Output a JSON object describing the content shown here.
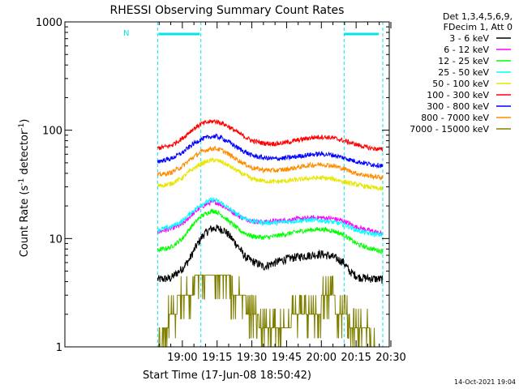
{
  "chart_data": {
    "type": "line",
    "title": "RHESSI Observing Summary Count Rates",
    "xlabel": "Start Time (17-Jun-08 18:50:42)",
    "ylabel_prefix": "Count Rate (s",
    "ylabel_sup1": "-1",
    "ylabel_mid": " detector",
    "ylabel_sup2": "-1",
    "ylabel_suffix": ")",
    "yscale": "log",
    "xlim_minutes": [
      -50.7,
      89.3
    ],
    "ylim": [
      1,
      1000
    ],
    "x_ticks": [
      "19:00",
      "19:15",
      "19:30",
      "19:45",
      "20:00",
      "20:15",
      "20:30"
    ],
    "x_tick_minutes": [
      0,
      15,
      30,
      45,
      60,
      75,
      90
    ],
    "y_ticks": [
      "1",
      "10",
      "100",
      "1000"
    ],
    "y_tick_values": [
      1,
      10,
      100,
      1000
    ],
    "detector_info": [
      "Det 1,3,4,5,6,9,",
      "FDecim 1, Att 0"
    ],
    "flag_label": "N",
    "timestamp": "14-Oct-2021 19:04",
    "night_intervals_minutes": [
      [
        -10.7,
        8.0
      ],
      [
        69.8,
        86.5
      ]
    ],
    "flag_bars_minutes": [
      [
        -10.3,
        7.5
      ],
      [
        69.8,
        84.8
      ]
    ],
    "series": [
      {
        "name": "3 - 6 keV",
        "color": "#000000",
        "x": [
          -10.7,
          -5,
          0,
          3,
          6,
          9,
          12,
          14,
          18,
          21,
          24,
          27,
          30,
          33,
          35,
          40,
          45,
          50,
          55,
          60,
          65,
          69.8,
          72,
          76,
          80,
          86.5
        ],
        "y": [
          4.2,
          4.3,
          5.3,
          6.4,
          8.5,
          10.8,
          12.2,
          12.5,
          12.0,
          10.2,
          8.5,
          6.8,
          6.2,
          5.8,
          5.5,
          6.0,
          6.5,
          6.8,
          7.0,
          7.2,
          6.8,
          6.0,
          5.0,
          4.4,
          4.3,
          4.2
        ]
      },
      {
        "name": "6 - 12 keV",
        "color": "#ff00ff",
        "x": [
          -10.7,
          -5,
          0,
          4,
          8,
          12,
          14,
          17,
          20,
          25,
          30,
          35,
          40,
          45,
          50,
          55,
          60,
          65,
          69.8,
          75,
          80,
          86.5
        ],
        "y": [
          11.5,
          12.3,
          13.5,
          16.5,
          19.5,
          21.5,
          21.8,
          20.5,
          18.5,
          15.8,
          14.5,
          14.2,
          14.5,
          14.8,
          15.2,
          15.5,
          15.6,
          15.3,
          14.5,
          12.8,
          12.0,
          11.0
        ]
      },
      {
        "name": "12 - 25 keV",
        "color": "#00ff00",
        "x": [
          -10.7,
          -5,
          0,
          4,
          8,
          12,
          14,
          17,
          20,
          25,
          30,
          35,
          40,
          45,
          50,
          55,
          60,
          65,
          69.8,
          75,
          80,
          86.5
        ],
        "y": [
          7.8,
          8.3,
          10.0,
          13.0,
          16.0,
          17.8,
          18.0,
          16.5,
          14.5,
          11.8,
          10.5,
          10.2,
          10.5,
          11.0,
          11.6,
          12.0,
          12.2,
          11.8,
          10.8,
          9.0,
          8.2,
          7.6
        ]
      },
      {
        "name": "25 - 50 keV",
        "color": "#00ffff",
        "x": [
          -10.7,
          -5,
          0,
          4,
          8,
          12,
          14,
          17,
          20,
          25,
          30,
          35,
          40,
          45,
          50,
          55,
          60,
          65,
          69.8,
          75,
          80,
          86.5
        ],
        "y": [
          12.0,
          12.8,
          14.5,
          17.5,
          20.5,
          22.5,
          22.8,
          21.2,
          19.0,
          16.0,
          14.5,
          14.0,
          14.0,
          14.3,
          14.6,
          14.8,
          14.7,
          14.2,
          13.5,
          12.0,
          11.2,
          10.8
        ]
      },
      {
        "name": "50 - 100 keV",
        "color": "#e6e600",
        "x": [
          -10.7,
          -5,
          0,
          4,
          8,
          12,
          14,
          17,
          20,
          25,
          30,
          35,
          40,
          45,
          50,
          55,
          60,
          65,
          69.8,
          75,
          80,
          86.5
        ],
        "y": [
          30.5,
          32.0,
          36.5,
          43.0,
          49.0,
          52.5,
          53.0,
          51.0,
          47.0,
          40.5,
          35.5,
          34.0,
          33.5,
          34.0,
          35.0,
          36.0,
          36.3,
          35.5,
          33.5,
          31.5,
          30.0,
          28.5
        ]
      },
      {
        "name": "100 - 300 keV",
        "color": "#ff0000",
        "x": [
          -10.7,
          -5,
          0,
          4,
          8,
          12,
          14,
          17,
          20,
          25,
          30,
          35,
          40,
          45,
          50,
          55,
          60,
          65,
          69.8,
          75,
          80,
          86.5
        ],
        "y": [
          68.0,
          72.0,
          84.0,
          100.0,
          114.0,
          120.0,
          121.0,
          117.0,
          108.0,
          92.0,
          80.0,
          76.0,
          75.0,
          77.0,
          81.0,
          85.0,
          87.0,
          85.0,
          80.0,
          74.0,
          69.0,
          66.0
        ]
      },
      {
        "name": "300 - 800 keV",
        "color": "#0000ff",
        "x": [
          -10.7,
          -5,
          0,
          4,
          8,
          12,
          14,
          17,
          20,
          25,
          30,
          35,
          40,
          45,
          50,
          55,
          60,
          65,
          69.8,
          75,
          80,
          86.5
        ],
        "y": [
          51.5,
          54.5,
          62.0,
          73.0,
          82.5,
          87.0,
          88.0,
          85.0,
          78.0,
          66.5,
          58.5,
          55.5,
          54.5,
          55.5,
          57.5,
          59.5,
          60.5,
          59.0,
          55.5,
          51.5,
          49.0,
          47.0
        ]
      },
      {
        "name": "800 - 7000 keV",
        "color": "#ff8c00",
        "x": [
          -10.7,
          -5,
          0,
          4,
          8,
          12,
          14,
          17,
          20,
          25,
          30,
          35,
          40,
          45,
          50,
          55,
          60,
          65,
          69.8,
          75,
          80,
          86.5
        ],
        "y": [
          38.5,
          40.5,
          46.5,
          55.0,
          63.0,
          67.5,
          68.0,
          65.5,
          60.0,
          51.5,
          45.0,
          43.0,
          42.5,
          43.5,
          45.5,
          47.5,
          48.5,
          47.0,
          44.0,
          40.0,
          38.0,
          36.5
        ]
      },
      {
        "name": "7000 - 15000 keV",
        "color": "#808000",
        "x": [
          -10.7,
          -5,
          0,
          4,
          8,
          12,
          14,
          17,
          20,
          25,
          30,
          35,
          40,
          45,
          50,
          55,
          60,
          65,
          69.8,
          75,
          80,
          86.5
        ],
        "y": [
          1.0,
          2.0,
          3.0,
          3.5,
          4.5,
          4.6,
          4.6,
          4.5,
          4.0,
          3.0,
          2.0,
          1.6,
          1.5,
          1.6,
          2.0,
          2.2,
          2.5,
          2.6,
          2.0,
          1.5,
          1.3,
          1.0
        ]
      }
    ]
  }
}
